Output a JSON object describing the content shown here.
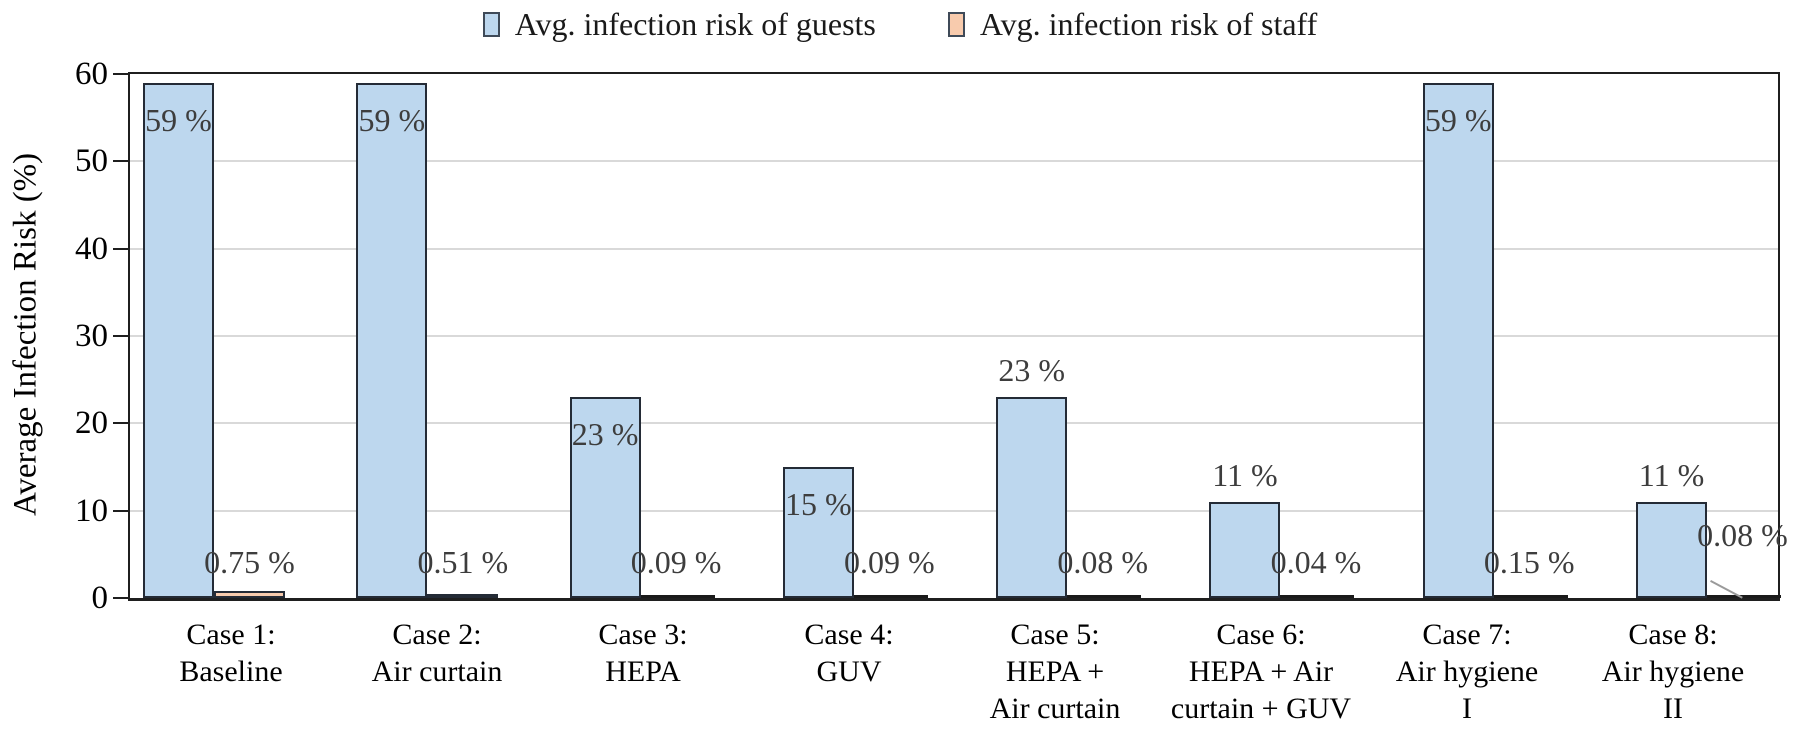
{
  "legend": {
    "items": [
      {
        "label": "Avg. infection risk of guests",
        "color": "#BDD7EE",
        "border": "#3f4a58"
      },
      {
        "label": "Avg. infection risk of staff",
        "color": "#F8CBAD",
        "border": "#3f4a58"
      }
    ]
  },
  "y_axis": {
    "title": "Average Infection Risk (%)"
  },
  "chart_data": {
    "type": "bar",
    "title": "",
    "xlabel": "",
    "ylabel": "Average Infection Risk (%)",
    "ylim": [
      0,
      60
    ],
    "yticks": [
      0,
      10,
      20,
      30,
      40,
      50,
      60
    ],
    "grid": "horizontal",
    "grid_color": "#d9d9d9",
    "legend_position": "top-center",
    "categories": [
      "Case 1:\nBaseline",
      "Case 2:\nAir curtain",
      "Case 3:\nHEPA",
      "Case 4:\nGUV",
      "Case 5:\nHEPA +\nAir curtain",
      "Case 6:\nHEPA + Air\ncurtain + GUV",
      "Case 7:\nAir hygiene\nI",
      "Case 8:\nAir hygiene\nII"
    ],
    "series": [
      {
        "name": "Avg. infection risk of guests",
        "color": "#BDD7EE",
        "border_color": "#242b36",
        "values": [
          59,
          59,
          23,
          15,
          23,
          11,
          59,
          11
        ],
        "data_labels": [
          "59 %",
          "59 %",
          "23 %",
          "15 %",
          "23 %",
          "11 %",
          "59 %",
          "11 %"
        ],
        "label_placement": [
          "inside",
          "inside",
          "inside",
          "inside",
          "above",
          "above",
          "inside",
          "above"
        ]
      },
      {
        "name": "Avg. infection risk of staff",
        "color": "#F8CBAD",
        "border_color": "#242b36",
        "values": [
          0.75,
          0.51,
          0.09,
          0.09,
          0.08,
          0.04,
          0.15,
          0.08
        ],
        "data_labels": [
          "0.75 %",
          "0.51 %",
          "0.09 %",
          "0.09 %",
          "0.08 %",
          "0.04 %",
          "0.15 %",
          "0.08 %"
        ],
        "label_raise": [
          0,
          0,
          0,
          0,
          0,
          0,
          0,
          27
        ],
        "leader_line_case_index": 7
      }
    ]
  }
}
